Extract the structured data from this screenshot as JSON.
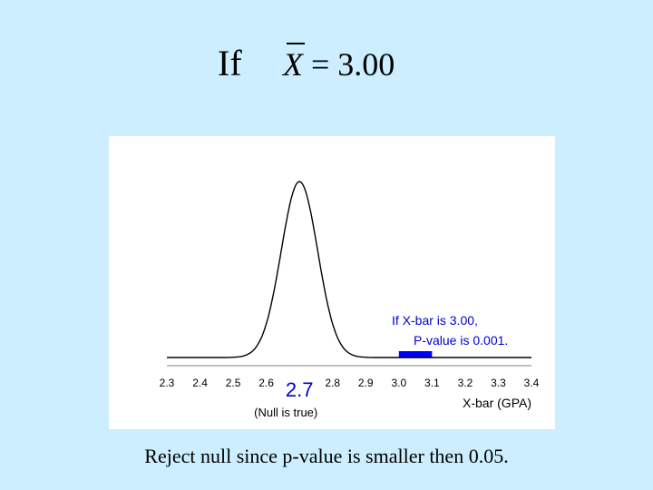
{
  "slide": {
    "title": "If",
    "formula": {
      "variable": "X",
      "rest": " = 3.00"
    },
    "caption": "Reject null since p-value is smaller then 0.05."
  },
  "chart_data": {
    "type": "area",
    "distribution": "normal",
    "mean": 2.7,
    "xlim": [
      2.3,
      3.4
    ],
    "ticks": [
      "2.3",
      "2.4",
      "2.5",
      "2.6",
      "2.7",
      "2.8",
      "2.9",
      "3.0",
      "3.1",
      "3.2",
      "3.3",
      "3.4"
    ],
    "highlight_tick": "2.7",
    "xlabel": "X-bar (GPA)",
    "mean_label": "(Null is true)",
    "observed": 3.0,
    "shaded_region": [
      3.0,
      3.1
    ],
    "annotation": [
      "If X-bar is 3.00,",
      "P-value is 0.001."
    ],
    "colors": {
      "curve": "#000000",
      "highlight": "#0000ff",
      "annotation": "#0000cc"
    }
  }
}
